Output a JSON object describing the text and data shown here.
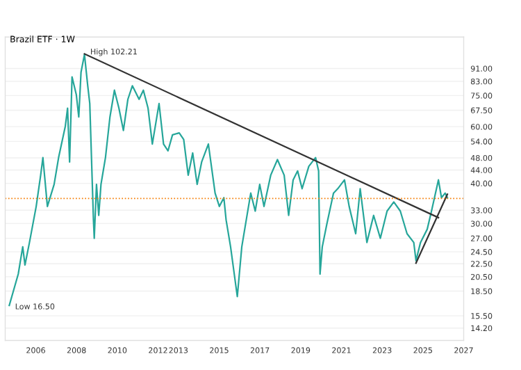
{
  "chart_data": {
    "type": "line",
    "title": "Brazil ETF · 1W",
    "log": "y",
    "grid": "y",
    "legend": false,
    "xlim": [
      2004.5,
      2027.0
    ],
    "xticks": [
      2006,
      2008,
      2010,
      2012,
      2013,
      2015,
      2017,
      2019,
      2021,
      2023,
      2025,
      2027
    ],
    "ylim": [
      13.0,
      114
    ],
    "yticks": [
      {
        "value": 91,
        "label": "91.00"
      },
      {
        "value": 83,
        "label": "83.00"
      },
      {
        "value": 75,
        "label": "75.00"
      },
      {
        "value": 67.5,
        "label": "67.50"
      },
      {
        "value": 60,
        "label": "60.00"
      },
      {
        "value": 54,
        "label": "54.00"
      },
      {
        "value": 48,
        "label": "48.00"
      },
      {
        "value": 44,
        "label": "44.00"
      },
      {
        "value": 40,
        "label": "40.00"
      },
      {
        "value": 33,
        "label": "33.00"
      },
      {
        "value": 30,
        "label": "30.00"
      },
      {
        "value": 27,
        "label": "27.00"
      },
      {
        "value": 24.5,
        "label": "24.50"
      },
      {
        "value": 22.5,
        "label": "22.50"
      },
      {
        "value": 20.5,
        "label": "20.50"
      },
      {
        "value": 18.5,
        "label": "18.50"
      },
      {
        "value": 15.5,
        "label": "15.50"
      },
      {
        "value": 14.2,
        "label": "14.20"
      }
    ],
    "ref_lines": [
      {
        "axis": "y",
        "value": 35.9,
        "color": "#f57c00",
        "line_style": "dotted"
      }
    ],
    "annotations": [
      {
        "text": "High 102.21",
        "x": 2008.39,
        "y": 102.21
      },
      {
        "text": "Low 16.50",
        "x": 2004.7,
        "y": 16.5
      }
    ],
    "series": [
      {
        "color": "#26a69a",
        "x": [
          2004.7,
          2005.14,
          2005.36,
          2005.47,
          2005.69,
          2006.02,
          2006.24,
          2006.35,
          2006.57,
          2006.9,
          2007.12,
          2007.45,
          2007.56,
          2007.66,
          2007.78,
          2007.99,
          2008.11,
          2008.22,
          2008.39,
          2008.55,
          2008.65,
          2008.83,
          2008.87,
          2008.98,
          2009.09,
          2009.2,
          2009.42,
          2009.64,
          2009.86,
          2010.08,
          2010.3,
          2010.52,
          2010.74,
          2011.07,
          2011.28,
          2011.51,
          2011.72,
          2012.05,
          2012.27,
          2012.49,
          2012.71,
          2013.04,
          2013.26,
          2013.48,
          2013.7,
          2013.92,
          2014.14,
          2014.47,
          2014.8,
          2015.01,
          2015.23,
          2015.34,
          2015.56,
          2015.89,
          2016.11,
          2016.33,
          2016.55,
          2016.77,
          2016.99,
          2017.2,
          2017.53,
          2017.86,
          2018.19,
          2018.41,
          2018.63,
          2018.85,
          2019.07,
          2019.4,
          2019.73,
          2019.88,
          2019.95,
          2020.06,
          2020.28,
          2020.61,
          2020.82,
          2021.15,
          2021.38,
          2021.7,
          2021.92,
          2022.25,
          2022.58,
          2022.91,
          2023.24,
          2023.57,
          2023.89,
          2024.22,
          2024.55,
          2024.66,
          2024.88,
          2025.21,
          2025.42,
          2025.76,
          2025.91,
          2026.09,
          2026.2
        ],
        "values": [
          16.7,
          20.9,
          25.4,
          22.3,
          26.2,
          33.9,
          42.4,
          48.1,
          33.9,
          39.7,
          48.1,
          60.2,
          68.5,
          46.6,
          85.7,
          75.4,
          64.3,
          88.5,
          100.6,
          80.4,
          70.8,
          30.8,
          27.0,
          39.7,
          31.8,
          39.7,
          48.1,
          64.3,
          77.9,
          68.5,
          58.4,
          73.0,
          80.4,
          73.0,
          77.9,
          68.5,
          53.0,
          70.8,
          53.0,
          50.5,
          56.6,
          57.4,
          54.7,
          42.4,
          49.7,
          39.7,
          46.6,
          53.0,
          37.3,
          33.9,
          36.1,
          30.8,
          25.4,
          17.8,
          25.4,
          30.8,
          37.3,
          32.8,
          39.7,
          33.9,
          42.4,
          47.4,
          42.4,
          31.8,
          41.0,
          43.7,
          38.5,
          45.2,
          48.1,
          43.7,
          20.9,
          25.4,
          29.8,
          37.3,
          38.5,
          41.0,
          33.9,
          27.9,
          38.5,
          26.2,
          31.8,
          27.0,
          32.8,
          35.0,
          32.8,
          27.9,
          26.2,
          23.0,
          26.2,
          28.8,
          32.8,
          41.0,
          36.1,
          37.3,
          36.1
        ]
      },
      {
        "color": "#333333",
        "x": [
          2008.39,
          2025.76
        ],
        "values": [
          101,
          31.3
        ]
      },
      {
        "color": "#333333",
        "x": [
          2024.66,
          2026.2
        ],
        "values": [
          22.6,
          37.0
        ]
      }
    ]
  }
}
